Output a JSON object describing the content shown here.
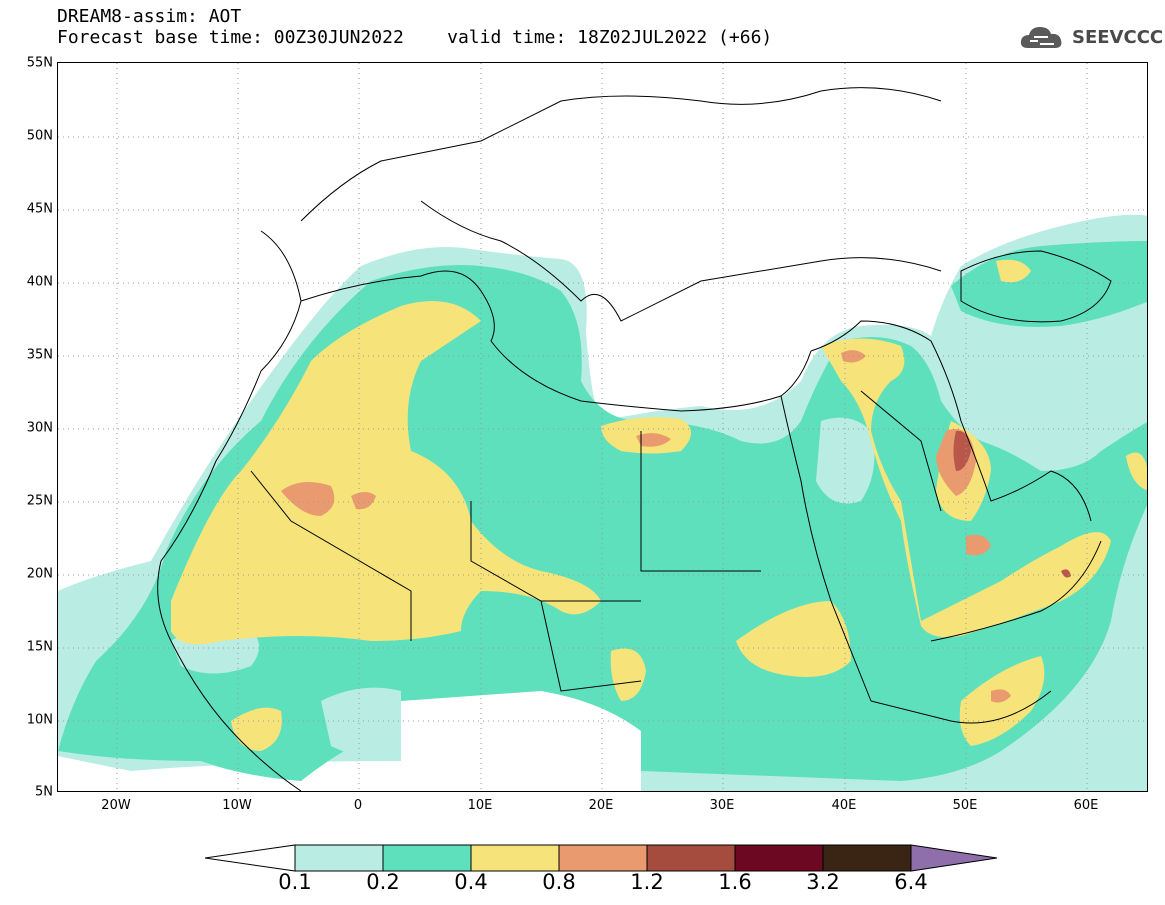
{
  "header": {
    "title": "DREAM8-assim: AOT",
    "base_time_line": "Forecast base time: 00Z30JUN2022    valid time: 18Z02JUL2022 (+66)"
  },
  "logo": {
    "text": "SEEVCCC",
    "icon": "cloud-icon"
  },
  "map": {
    "lat_labels": [
      "55N",
      "50N",
      "45N",
      "40N",
      "35N",
      "30N",
      "25N",
      "20N",
      "15N",
      "10N",
      "5N"
    ],
    "lon_labels": [
      "20W",
      "10W",
      "0",
      "10E",
      "20E",
      "30E",
      "40E",
      "50E",
      "60E"
    ],
    "gridline_style": "dotted"
  },
  "colorbar": {
    "levels": [
      "0.1",
      "0.2",
      "0.4",
      "0.8",
      "1.2",
      "1.6",
      "3.2",
      "6.4"
    ],
    "colors": [
      "#ffffff",
      "#b9ede3",
      "#5fe0bd",
      "#f6e47a",
      "#e99a6e",
      "#a64c3e",
      "#6c0822",
      "#3a2514",
      "#8f6fab"
    ]
  },
  "colors": {
    "c01": "#b9ede3",
    "c02": "#5fe0bd",
    "c04": "#f6e47a",
    "c08": "#e99a6e",
    "c12": "#b9584a",
    "c16": "#8e2c22",
    "c32": "#6c0822"
  }
}
